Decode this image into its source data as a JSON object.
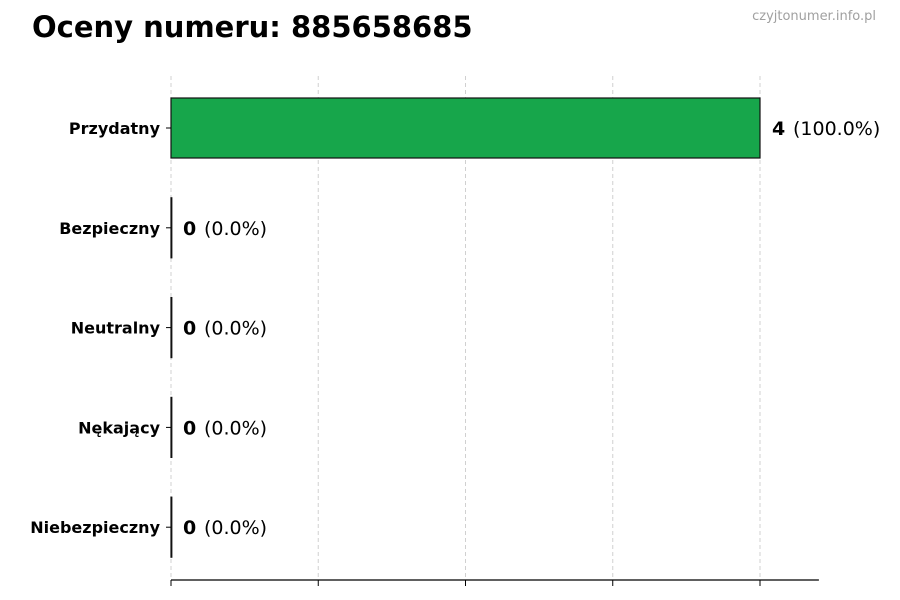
{
  "chart_data": {
    "type": "bar",
    "orientation": "horizontal",
    "title": "Oceny numeru: 885658685",
    "watermark": "czyjtonumer.info.pl",
    "categories": [
      "Przydatny",
      "Bezpieczny",
      "Neutralny",
      "Nękający",
      "Niebezpieczny"
    ],
    "values": [
      4,
      0,
      0,
      0,
      0
    ],
    "percent_labels": [
      "(100.0%)",
      "(0.0%)",
      "(0.0%)",
      "(0.0%)",
      "(0.0%)"
    ],
    "bar_color": "#17a64b",
    "xlim": [
      0,
      4.4
    ],
    "xticks": [
      0,
      1,
      2,
      3,
      4
    ],
    "xtick_labels_shown": false,
    "grid": "vertical dashed",
    "xlabel": "",
    "ylabel": ""
  }
}
